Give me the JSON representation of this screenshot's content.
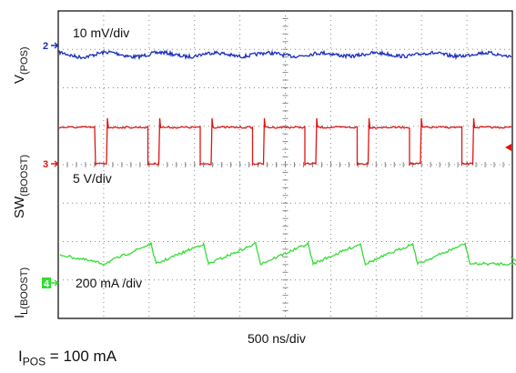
{
  "chart_data": {
    "type": "line",
    "title": "",
    "grid": true,
    "channels": [
      {
        "id": "ch2",
        "marker": "2",
        "label_main": "V",
        "label_sub": "(POS)",
        "scale": "10 mV/div",
        "color": "#1a2fbf",
        "waveform": "dc-with-ripple"
      },
      {
        "id": "ch3",
        "marker": "3",
        "label_main": "SW",
        "label_sub": "(BOOST)",
        "scale": "5 V/div",
        "color": "#e01414",
        "waveform": "square",
        "pulses": 8
      },
      {
        "id": "ch4",
        "marker": "4",
        "label_main": "I",
        "label_sub": "L(BOOST)",
        "scale": "200 mA /div",
        "color": "#33dd33",
        "waveform": "triangle",
        "ramps": 9
      }
    ],
    "timebase": "500 ns/div",
    "x_divisions": 10,
    "y_divisions": 8
  },
  "footnote": {
    "main": "I",
    "sub": "POS",
    "rest": " = 100 mA"
  }
}
